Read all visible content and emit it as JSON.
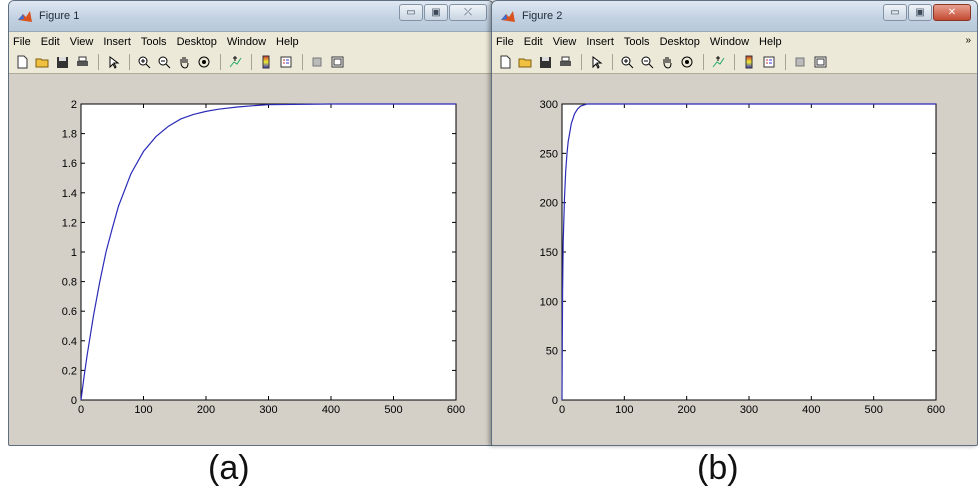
{
  "windows": [
    {
      "title": "Figure 1",
      "menu": [
        "File",
        "Edit",
        "View",
        "Insert",
        "Tools",
        "Desktop",
        "Window",
        "Help"
      ],
      "buttons": {
        "minimize": "▭",
        "maximize": "▣",
        "close": "⤫"
      },
      "toolbar_icons": [
        "new-figure-icon",
        "open-file-icon",
        "save-icon",
        "print-icon",
        "edit-plot-icon",
        "zoom-in-icon",
        "zoom-out-icon",
        "pan-icon",
        "rotate-3d-icon",
        "data-cursor-icon",
        "insert-colorbar-icon",
        "insert-legend-icon",
        "hide-plot-tools-icon",
        "show-plot-tools-icon"
      ],
      "caption": "(a)",
      "chart_data": {
        "type": "line",
        "xlim": [
          0,
          600
        ],
        "ylim": [
          0,
          2
        ],
        "xticks": [
          0,
          100,
          200,
          300,
          400,
          500,
          600
        ],
        "yticks": [
          0,
          0.2,
          0.4,
          0.6,
          0.8,
          1,
          1.2,
          1.4,
          1.6,
          1.8,
          2
        ],
        "xtick_labels": [
          "0",
          "100",
          "200",
          "300",
          "400",
          "500",
          "600"
        ],
        "ytick_labels": [
          "0",
          "0.2",
          "0.4",
          "0.6",
          "0.8",
          "1",
          "1.2",
          "1.4",
          "1.6",
          "1.8",
          "2"
        ],
        "grid": false,
        "line_color": "#2b2bb8",
        "series": [
          {
            "x": [
              0,
              5,
              10,
              20,
              30,
              40,
              50,
              60,
              80,
              100,
              120,
              140,
              160,
              180,
              200,
              220,
              250,
              280,
              300,
              400,
              500,
              600
            ],
            "y": [
              0,
              0.16,
              0.31,
              0.57,
              0.8,
              1.0,
              1.16,
              1.31,
              1.53,
              1.68,
              1.78,
              1.85,
              1.9,
              1.93,
              1.95,
              1.965,
              1.98,
              1.99,
              1.995,
              2.0,
              2.0,
              2.0
            ]
          }
        ]
      }
    },
    {
      "title": "Figure 2",
      "menu": [
        "File",
        "Edit",
        "View",
        "Insert",
        "Tools",
        "Desktop",
        "Window",
        "Help"
      ],
      "buttons": {
        "minimize": "▭",
        "maximize": "▣",
        "close": "✕"
      },
      "overflow": "»",
      "toolbar_icons": [
        "new-figure-icon",
        "open-file-icon",
        "save-icon",
        "print-icon",
        "edit-plot-icon",
        "zoom-in-icon",
        "zoom-out-icon",
        "pan-icon",
        "rotate-3d-icon",
        "data-cursor-icon",
        "insert-colorbar-icon",
        "insert-legend-icon",
        "hide-plot-tools-icon",
        "show-plot-tools-icon"
      ],
      "caption": "(b)",
      "chart_data": {
        "type": "line",
        "xlim": [
          0,
          600
        ],
        "ylim": [
          0,
          300
        ],
        "xticks": [
          0,
          100,
          200,
          300,
          400,
          500,
          600
        ],
        "yticks": [
          0,
          50,
          100,
          150,
          200,
          250,
          300
        ],
        "xtick_labels": [
          "0",
          "100",
          "200",
          "300",
          "400",
          "500",
          "600"
        ],
        "ytick_labels": [
          "0",
          "50",
          "100",
          "150",
          "200",
          "250",
          "300"
        ],
        "grid": false,
        "line_color": "#2b2bb8",
        "series": [
          {
            "x": [
              0,
              0.5,
              1,
              2,
              4,
              6,
              8,
              10,
              15,
              20,
              25,
              30,
              40,
              60,
              600
            ],
            "y": [
              0,
              60,
              110,
              160,
              205,
              232,
              250,
              262,
              280,
              290,
              295,
              298,
              300,
              300,
              300
            ]
          }
        ]
      }
    }
  ]
}
